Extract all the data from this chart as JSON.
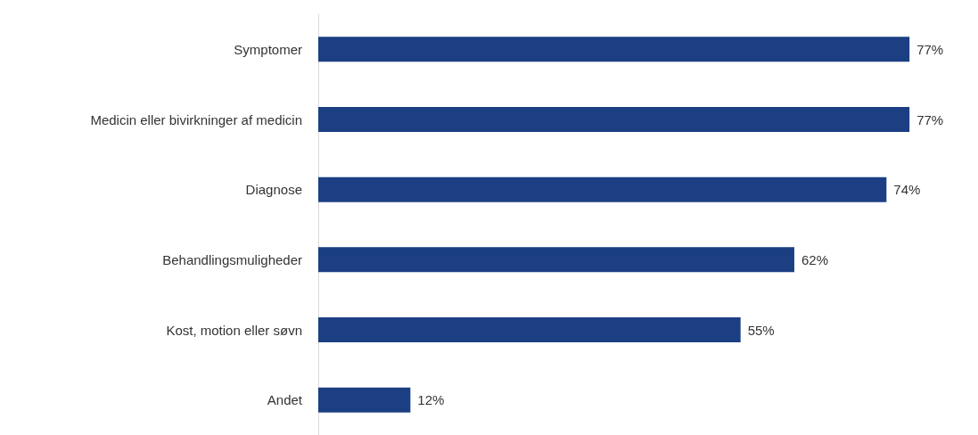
{
  "chart_data": {
    "type": "bar",
    "orientation": "horizontal",
    "categories": [
      "Symptomer",
      "Medicin eller bivirkninger af medicin",
      "Diagnose",
      "Behandlingsmuligheder",
      "Kost, motion eller søvn",
      "Andet"
    ],
    "values": [
      77,
      77,
      74,
      62,
      55,
      12
    ],
    "value_labels": [
      "77%",
      "77%",
      "74%",
      "62%",
      "55%",
      "12%"
    ],
    "color": "#1b3f82"
  }
}
